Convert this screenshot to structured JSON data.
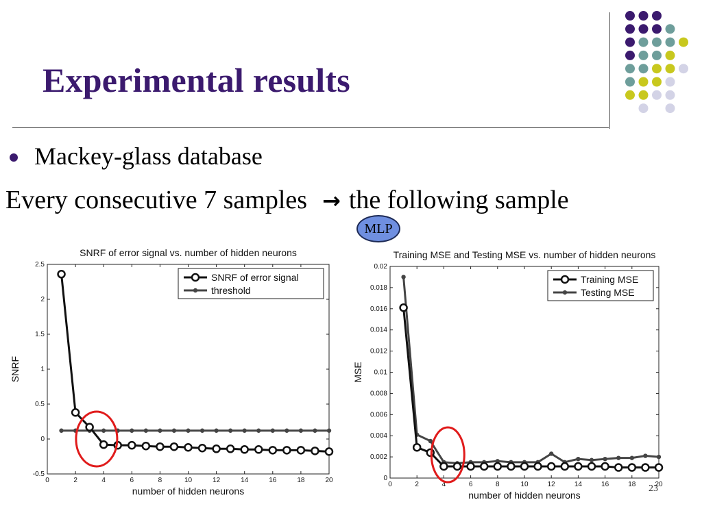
{
  "slide": {
    "title": "Experimental results",
    "bullet": "Mackey-glass database",
    "line2_left": "Every consecutive 7 samples",
    "arrow": "→",
    "line2_right": "the following sample",
    "mlp_label": "MLP",
    "page_number": "23"
  },
  "decor": {
    "purple": "#3b1a6e",
    "teal": "#6e9e9b",
    "yellow": "#c8c81e",
    "lavender": "#d3d3e6",
    "highlight_circle": "#e01b1b"
  },
  "chart_data": [
    {
      "type": "line",
      "title": "SNRF of error signal vs. number of hidden neurons",
      "xlabel": "number of hidden neurons",
      "ylabel": "SNRF",
      "xlim": [
        0,
        20
      ],
      "ylim": [
        -0.5,
        2.5
      ],
      "xticks": [
        0,
        2,
        4,
        6,
        8,
        10,
        12,
        14,
        16,
        18,
        20
      ],
      "yticks": [
        -0.5,
        0,
        0.5,
        1,
        1.5,
        2,
        2.5
      ],
      "ytick_labels": [
        "-0.5",
        "0",
        "0.5",
        "1",
        "1.5",
        "2",
        "2.5"
      ],
      "grid": false,
      "legend_position": "top-right",
      "highlight": {
        "x": 3.5,
        "y": 0.0
      },
      "x": [
        1,
        2,
        3,
        4,
        5,
        6,
        7,
        8,
        9,
        10,
        11,
        12,
        13,
        14,
        15,
        16,
        17,
        18,
        19,
        20
      ],
      "series": [
        {
          "name": "SNRF of error signal",
          "marker": "circle",
          "color": "#111111",
          "values": [
            2.36,
            0.38,
            0.17,
            -0.08,
            -0.09,
            -0.09,
            -0.1,
            -0.11,
            -0.11,
            -0.12,
            -0.13,
            -0.14,
            -0.14,
            -0.15,
            -0.15,
            -0.16,
            -0.16,
            -0.16,
            -0.17,
            -0.18
          ]
        },
        {
          "name": "threshold",
          "marker": "dot",
          "color": "#444444",
          "values": [
            0.12,
            0.12,
            0.12,
            0.12,
            0.12,
            0.12,
            0.12,
            0.12,
            0.12,
            0.12,
            0.12,
            0.12,
            0.12,
            0.12,
            0.12,
            0.12,
            0.12,
            0.12,
            0.12,
            0.12
          ]
        }
      ]
    },
    {
      "type": "line",
      "title": "Training MSE and Testing MSE vs. number of hidden neurons",
      "xlabel": "number of hidden neurons",
      "ylabel": "MSE",
      "xlim": [
        0,
        20
      ],
      "ylim": [
        0,
        0.02
      ],
      "xticks": [
        0,
        2,
        4,
        6,
        8,
        10,
        12,
        14,
        16,
        18,
        20
      ],
      "yticks": [
        0,
        0.002,
        0.004,
        0.006,
        0.008,
        0.01,
        0.012,
        0.014,
        0.016,
        0.018,
        0.02
      ],
      "ytick_labels": [
        "0",
        "0.002",
        "0.004",
        "0.006",
        "0.008",
        "0.01",
        "0.012",
        "0.014",
        "0.016",
        "0.018",
        "0.02"
      ],
      "grid": false,
      "legend_position": "top-right",
      "highlight": {
        "x": 4.3,
        "y": 0.0022
      },
      "x": [
        1,
        2,
        3,
        4,
        5,
        6,
        7,
        8,
        9,
        10,
        11,
        12,
        13,
        14,
        15,
        16,
        17,
        18,
        19,
        20
      ],
      "series": [
        {
          "name": "Training MSE",
          "marker": "circle",
          "color": "#111111",
          "values": [
            0.0161,
            0.0029,
            0.0024,
            0.0011,
            0.0011,
            0.0011,
            0.0011,
            0.0011,
            0.0011,
            0.0011,
            0.0011,
            0.0011,
            0.0011,
            0.0011,
            0.0011,
            0.0011,
            0.001,
            0.001,
            0.001,
            0.001
          ]
        },
        {
          "name": "Testing MSE",
          "marker": "dot",
          "color": "#444444",
          "values": [
            0.019,
            0.0041,
            0.0035,
            0.0015,
            0.0014,
            0.0015,
            0.0015,
            0.0016,
            0.0015,
            0.0015,
            0.0015,
            0.0023,
            0.0015,
            0.0018,
            0.0017,
            0.0018,
            0.0019,
            0.0019,
            0.0021,
            0.002
          ]
        }
      ]
    }
  ]
}
